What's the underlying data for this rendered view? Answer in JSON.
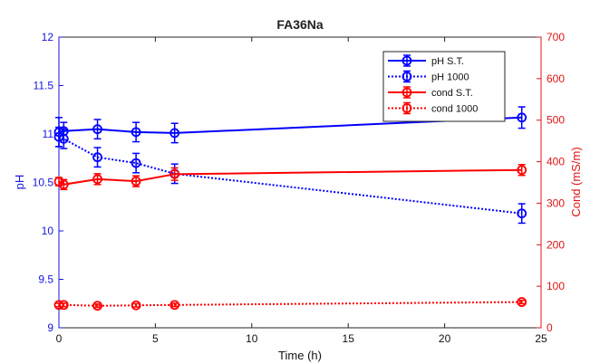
{
  "chart_data": {
    "type": "line",
    "title": "FA36Na",
    "xlabel": "Time (h)",
    "ylabel_left": "pH",
    "ylabel_right": "Cond (mS/m)",
    "xlim": [
      0,
      25
    ],
    "ylim_left": [
      9,
      12
    ],
    "ylim_right": [
      0,
      700
    ],
    "xticks": [
      0,
      5,
      10,
      15,
      20,
      25
    ],
    "yticks_left": [
      9,
      9.5,
      10,
      10.5,
      11,
      11.5,
      12
    ],
    "yticks_left_labels": [
      "9",
      "9.5",
      "10",
      "10.5",
      "11",
      "11.5",
      "12"
    ],
    "yticks_right": [
      0,
      100,
      200,
      300,
      400,
      500,
      600,
      700
    ],
    "grid": false,
    "legend_position": "top-right",
    "series": [
      {
        "name": "pH S.T.",
        "axis": "left",
        "color": "#0000ff",
        "dash": "solid",
        "x": [
          0,
          0.25,
          2,
          4,
          6,
          24
        ],
        "y": [
          11.02,
          11.03,
          11.05,
          11.02,
          11.01,
          11.17
        ],
        "err": [
          0.15,
          0.09,
          0.1,
          0.1,
          0.1,
          0.11
        ]
      },
      {
        "name": "pH 1000",
        "axis": "left",
        "color": "#0000ff",
        "dash": "dotted",
        "x": [
          0,
          0.25,
          2,
          4,
          6,
          24
        ],
        "y": [
          10.97,
          10.95,
          10.76,
          10.7,
          10.59,
          10.18
        ],
        "err": [
          0.1,
          0.1,
          0.1,
          0.1,
          0.1,
          0.1
        ]
      },
      {
        "name": "cond S.T.",
        "axis": "right",
        "color": "#ff0000",
        "dash": "solid",
        "x": [
          0,
          0.25,
          2,
          4,
          6,
          24
        ],
        "y": [
          352,
          345,
          358,
          353,
          370,
          380
        ],
        "err": [
          10,
          12,
          13,
          13,
          15,
          13
        ]
      },
      {
        "name": "cond 1000",
        "axis": "right",
        "color": "#ff0000",
        "dash": "dotted",
        "x": [
          0,
          0.25,
          2,
          4,
          6,
          24
        ],
        "y": [
          55,
          55,
          53,
          54,
          55,
          62
        ],
        "err": [
          4,
          4,
          4,
          4,
          4,
          4
        ]
      }
    ]
  }
}
